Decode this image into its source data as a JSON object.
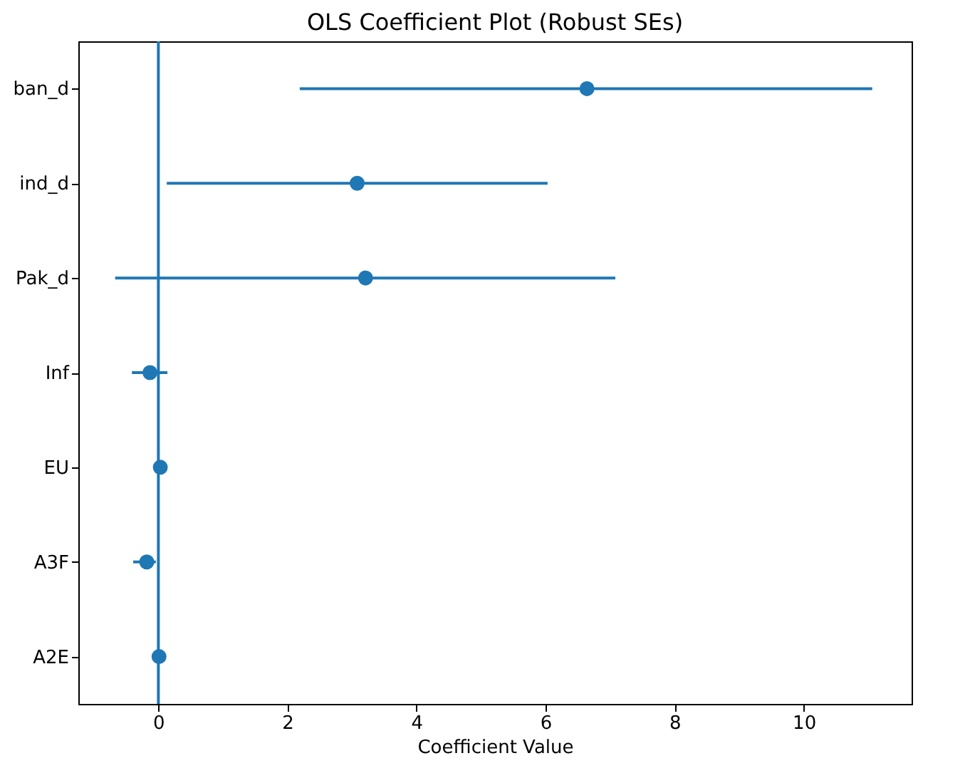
{
  "chart_data": {
    "type": "scatter",
    "orientation": "horizontal",
    "title": "OLS Coefficient Plot (Robust SEs)",
    "xlabel": "Coefficient Value",
    "categories": [
      "ban_d",
      "ind_d",
      "Pak_d",
      "Inf",
      "EU",
      "A3F",
      "A2E"
    ],
    "series": [
      {
        "color": "#1f77b4",
        "values": [
          6.64,
          3.08,
          3.21,
          -0.13,
          0.03,
          -0.18,
          0.01
        ],
        "errors": [
          [
            2.19,
            11.06
          ],
          [
            0.13,
            6.03
          ],
          [
            -0.67,
            7.08
          ],
          [
            -0.41,
            0.14
          ],
          null,
          [
            -0.39,
            -0.04
          ],
          null
        ]
      }
    ],
    "xlim": [
      -1.24,
      11.67
    ],
    "xticks": [
      0,
      2,
      4,
      6,
      8,
      10
    ],
    "marker": "circle",
    "ref_lines": [
      {
        "axis": "x",
        "value": 0,
        "color": "#1f77b4"
      }
    ]
  }
}
